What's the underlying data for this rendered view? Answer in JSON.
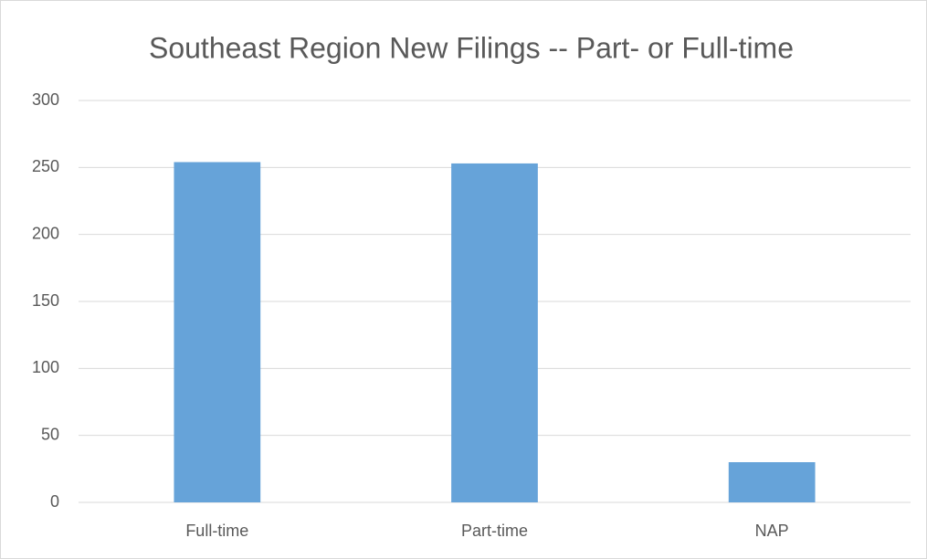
{
  "chart_data": {
    "type": "bar",
    "title": "Southeast Region New Filings -- Part- or Full-time",
    "categories": [
      "Full-time",
      "Part-time",
      "NAP"
    ],
    "values": [
      254,
      253,
      30
    ],
    "color": "#66a3d9",
    "ylim": [
      0,
      300
    ],
    "yticks": [
      0,
      50,
      100,
      150,
      200,
      250,
      300
    ],
    "grid": true
  }
}
